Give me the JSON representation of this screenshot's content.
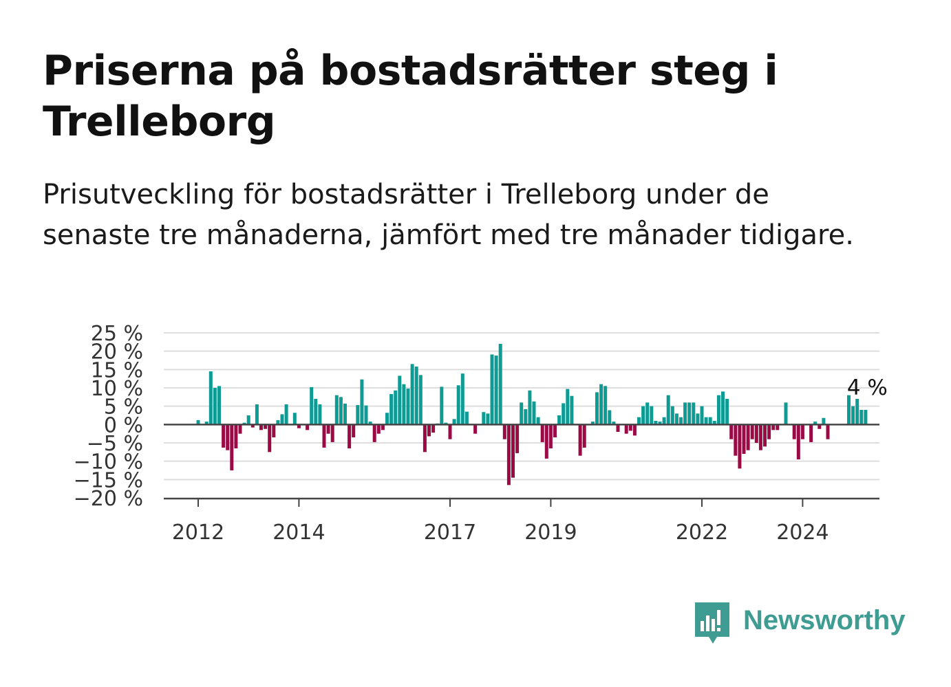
{
  "title": "Priserna på bostadsrätter steg i Trelleborg",
  "subtitle": "Prisutveckling för bostadsrätter i Trelleborg under de senaste tre månaderna, jämfört med tre månader tidigare.",
  "brand": {
    "name": "Newsworthy",
    "icon": "newsworthy-logo-icon",
    "color": "#3f9c92"
  },
  "chart_data": {
    "type": "bar",
    "start": "2011-01",
    "y_tick_labels": [
      "25 %",
      "20 %",
      "15 %",
      "10 %",
      "5 %",
      "0 %",
      "−5 %",
      "−10 %",
      "−15 %",
      "−20 %"
    ],
    "y_ticks": [
      25,
      20,
      15,
      10,
      5,
      0,
      -5,
      -10,
      -15,
      -20
    ],
    "ylim": [
      -20,
      25
    ],
    "x_ticks": [
      {
        "year": 2012,
        "label": "2012"
      },
      {
        "year": 2014,
        "label": "2014"
      },
      {
        "year": 2017,
        "label": "2017"
      },
      {
        "year": 2019,
        "label": "2019"
      },
      {
        "year": 2022,
        "label": "2022"
      },
      {
        "year": 2024,
        "label": "2024"
      }
    ],
    "last_value_label": "4 %",
    "grid": true,
    "positive_color": "#0d9b94",
    "negative_color": "#9a0a44",
    "values": [
      0,
      0,
      0,
      0,
      0,
      0,
      0,
      0,
      0,
      0,
      0,
      0,
      1.2,
      0,
      0.8,
      14.5,
      10,
      10.5,
      -6.3,
      -7,
      -12.5,
      -6.5,
      -2.5,
      0.5,
      2.5,
      -0.8,
      5.5,
      -1.5,
      -1.2,
      -7.5,
      -3.5,
      1.2,
      2.8,
      5.5,
      0,
      3.2,
      -1,
      0,
      -1.5,
      10.2,
      7,
      5.5,
      -6.3,
      -2.5,
      -4.8,
      8,
      7.5,
      5.7,
      -6.5,
      -3.5,
      5.3,
      12.3,
      5.2,
      0.8,
      -4.8,
      -2.5,
      -1.5,
      3.2,
      8.3,
      9.3,
      13.3,
      11,
      9.8,
      16.5,
      15.8,
      13.5,
      -7.5,
      -3.2,
      -2.2,
      0.3,
      10.3,
      0.5,
      -4,
      1.5,
      10.7,
      13.9,
      3.5,
      0,
      -2.5,
      0,
      3.4,
      3,
      19.1,
      18.8,
      22,
      -4,
      -16.5,
      -14.5,
      -7.8,
      6,
      4.2,
      9.3,
      6.3,
      2,
      -4.8,
      -9.3,
      -6.5,
      -3.5,
      2.5,
      5.8,
      9.7,
      7.8,
      0,
      -8.5,
      -6.3,
      0,
      0.8,
      8.8,
      11,
      10.5,
      3.9,
      0.8,
      -2,
      0,
      -2.5,
      -1.7,
      -3,
      2,
      5,
      6,
      5,
      1,
      0.8,
      2,
      8,
      5,
      3,
      2,
      6,
      6,
      6,
      3,
      5,
      2,
      2,
      1,
      8,
      9,
      7,
      -4,
      -8.5,
      -12,
      -8,
      -7,
      -4,
      -5,
      -7,
      -6,
      -4,
      -1.5,
      -1.5,
      0,
      6,
      0,
      -4,
      -9.5,
      -4,
      0,
      -4.8,
      0.8,
      -1.2,
      1.8,
      -4,
      0,
      0,
      0,
      0,
      8,
      5,
      7,
      4,
      4
    ]
  }
}
